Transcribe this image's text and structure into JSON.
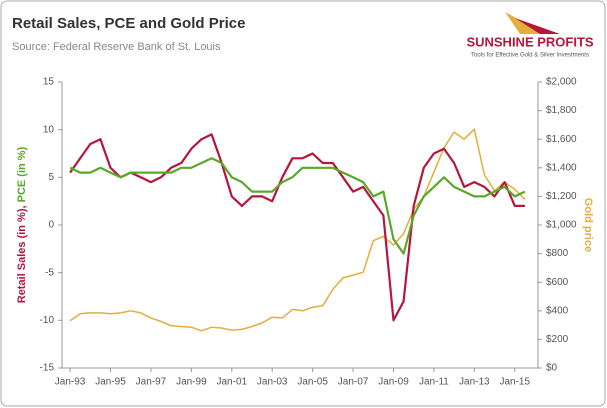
{
  "chart_data": {
    "type": "line",
    "title": "Retail Sales, PCE and Gold Price",
    "subtitle": "Source: Federal Reserve Bank of St. Louis",
    "ylabel": [
      "Retail Sales  (in %),",
      "PCE (in %)"
    ],
    "y2label": "Gold price",
    "x": [
      1993,
      1993.5,
      1994,
      1994.5,
      1995,
      1995.5,
      1996,
      1996.5,
      1997,
      1997.5,
      1998,
      1998.5,
      1999,
      1999.5,
      2000,
      2000.5,
      2001,
      2001.5,
      2002,
      2002.5,
      2003,
      2003.5,
      2004,
      2004.5,
      2005,
      2005.5,
      2006,
      2006.5,
      2007,
      2007.5,
      2008,
      2008.5,
      2009,
      2009.5,
      2010,
      2010.5,
      2011,
      2011.5,
      2012,
      2012.5,
      2013,
      2013.5,
      2014,
      2014.5,
      2015,
      2015.5
    ],
    "series": [
      {
        "color": "#b5173c",
        "axis": "y",
        "values": [
          5.5,
          7,
          8.5,
          9,
          6,
          5,
          5.5,
          5,
          4.5,
          5,
          6,
          6.5,
          8,
          9,
          9.5,
          6.5,
          3,
          2,
          3,
          3,
          2.5,
          5,
          7,
          7,
          7.5,
          6.5,
          6.5,
          5,
          3.5,
          4,
          2.5,
          1,
          -10,
          -8,
          2,
          6,
          7.5,
          8,
          6.5,
          4,
          4.5,
          4,
          3,
          4.5,
          2,
          2
        ]
      },
      {
        "color": "#5aa82a",
        "axis": "y",
        "values": [
          6,
          5.5,
          5.5,
          6,
          5.5,
          5,
          5.5,
          5.5,
          5.5,
          5.5,
          5.5,
          6,
          6,
          6.5,
          7,
          6.5,
          5,
          4.5,
          3.5,
          3.5,
          3.5,
          4.5,
          5,
          6,
          6,
          6,
          6,
          5.5,
          5,
          4.5,
          3,
          3.5,
          -1.5,
          -3,
          1,
          3,
          4,
          5,
          4,
          3.5,
          3,
          3,
          3.5,
          4,
          3,
          3.5
        ]
      },
      {
        "color": "#e3ae3c",
        "axis": "y2",
        "values": [
          330,
          380,
          385,
          385,
          380,
          385,
          400,
          385,
          350,
          325,
          295,
          290,
          285,
          260,
          285,
          280,
          265,
          270,
          290,
          315,
          355,
          350,
          410,
          400,
          425,
          435,
          550,
          630,
          650,
          670,
          890,
          920,
          860,
          940,
          1110,
          1200,
          1370,
          1540,
          1650,
          1600,
          1670,
          1350,
          1240,
          1300,
          1250,
          1180
        ]
      }
    ],
    "xlim": [
      1992.6,
      2016.15
    ],
    "xticks": [
      {
        "value": 1993,
        "label": "Jan-93"
      },
      {
        "value": 1995,
        "label": "Jan-95"
      },
      {
        "value": 1997,
        "label": "Jan-97"
      },
      {
        "value": 1999,
        "label": "Jan-99"
      },
      {
        "value": 2001,
        "label": "Jan-01"
      },
      {
        "value": 2003,
        "label": "Jan-03"
      },
      {
        "value": 2005,
        "label": "Jan-05"
      },
      {
        "value": 2007,
        "label": "Jan-07"
      },
      {
        "value": 2009,
        "label": "Jan-09"
      },
      {
        "value": 2011,
        "label": "Jan-11"
      },
      {
        "value": 2013,
        "label": "Jan-13"
      },
      {
        "value": 2015,
        "label": "Jan-15"
      }
    ],
    "ylim": [
      -15,
      15
    ],
    "yticks": [
      -15,
      -10,
      -5,
      0,
      5,
      10,
      15
    ],
    "y2lim": [
      0,
      2000
    ],
    "y2ticks": [
      {
        "value": 0,
        "label": "$0"
      },
      {
        "value": 200,
        "label": "$200"
      },
      {
        "value": 400,
        "label": "$400"
      },
      {
        "value": 600,
        "label": "$600"
      },
      {
        "value": 800,
        "label": "$800"
      },
      {
        "value": 1000,
        "label": "$1,000"
      },
      {
        "value": 1200,
        "label": "$1,200"
      },
      {
        "value": 1400,
        "label": "$1,400"
      },
      {
        "value": 1600,
        "label": "$1,600"
      },
      {
        "value": 1800,
        "label": "$1,800"
      },
      {
        "value": 2000,
        "label": "$2,000"
      }
    ],
    "grid": false
  },
  "logo": {
    "name": "SUNSHINE PROFITS",
    "tagline": "Tools for Effective Gold & Silver Investments"
  }
}
